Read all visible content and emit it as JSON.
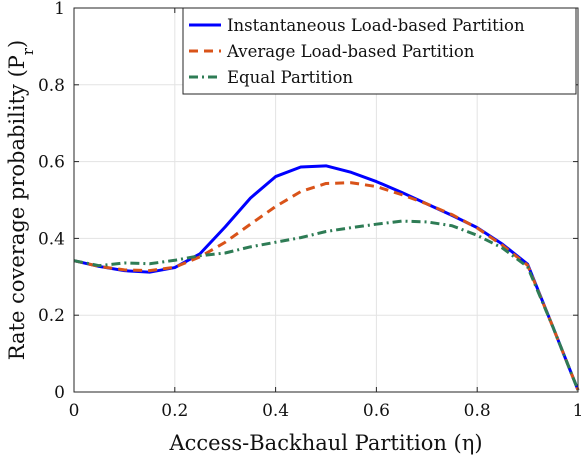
{
  "chart_data": {
    "type": "line",
    "xlabel": "Access-Backhaul Partition (η)",
    "ylabel": "Rate coverage probability (P",
    "ylabel_subscript": "r",
    "ylabel_close": ")",
    "xlim": [
      0,
      1
    ],
    "ylim": [
      0,
      1
    ],
    "xticks": [
      0,
      0.2,
      0.4,
      0.6,
      0.8,
      1
    ],
    "xtick_labels": [
      "0",
      "0.2",
      "0.4",
      "0.6",
      "0.8",
      "1"
    ],
    "yticks": [
      0,
      0.2,
      0.4,
      0.6,
      0.8,
      1
    ],
    "ytick_labels": [
      "0",
      "0.2",
      "0.4",
      "0.6",
      "0.8",
      "1"
    ],
    "grid": true,
    "legend_position": "top-right",
    "series": [
      {
        "name": "Instantaneous Load-based Partition",
        "color": "#0000ff",
        "style": "solid",
        "x": [
          0,
          0.05,
          0.1,
          0.15,
          0.2,
          0.25,
          0.3,
          0.35,
          0.4,
          0.45,
          0.5,
          0.55,
          0.6,
          0.65,
          0.7,
          0.75,
          0.8,
          0.85,
          0.9,
          0.95,
          1
        ],
        "y": [
          0.342,
          0.327,
          0.316,
          0.312,
          0.324,
          0.36,
          0.43,
          0.505,
          0.561,
          0.586,
          0.589,
          0.572,
          0.548,
          0.52,
          0.49,
          0.46,
          0.428,
          0.385,
          0.333,
          0.17,
          0.005
        ]
      },
      {
        "name": "Average Load-based Partition",
        "color": "#d95319",
        "style": "dashed",
        "x": [
          0,
          0.05,
          0.1,
          0.15,
          0.2,
          0.25,
          0.3,
          0.35,
          0.4,
          0.45,
          0.5,
          0.55,
          0.6,
          0.65,
          0.7,
          0.75,
          0.8,
          0.85,
          0.9,
          0.95,
          1
        ],
        "y": [
          0.342,
          0.327,
          0.318,
          0.316,
          0.325,
          0.352,
          0.39,
          0.437,
          0.483,
          0.522,
          0.543,
          0.545,
          0.535,
          0.514,
          0.49,
          0.462,
          0.427,
          0.382,
          0.33,
          0.17,
          0.005
        ]
      },
      {
        "name": "Equal Partition",
        "color": "#2e7c55",
        "style": "dashdot",
        "x": [
          0,
          0.05,
          0.1,
          0.15,
          0.2,
          0.25,
          0.3,
          0.35,
          0.4,
          0.45,
          0.5,
          0.55,
          0.6,
          0.65,
          0.7,
          0.75,
          0.8,
          0.85,
          0.9,
          0.95,
          1
        ],
        "y": [
          0.342,
          0.329,
          0.336,
          0.334,
          0.343,
          0.355,
          0.362,
          0.378,
          0.39,
          0.402,
          0.418,
          0.428,
          0.437,
          0.445,
          0.443,
          0.433,
          0.408,
          0.375,
          0.326,
          0.17,
          0.005
        ]
      }
    ]
  }
}
